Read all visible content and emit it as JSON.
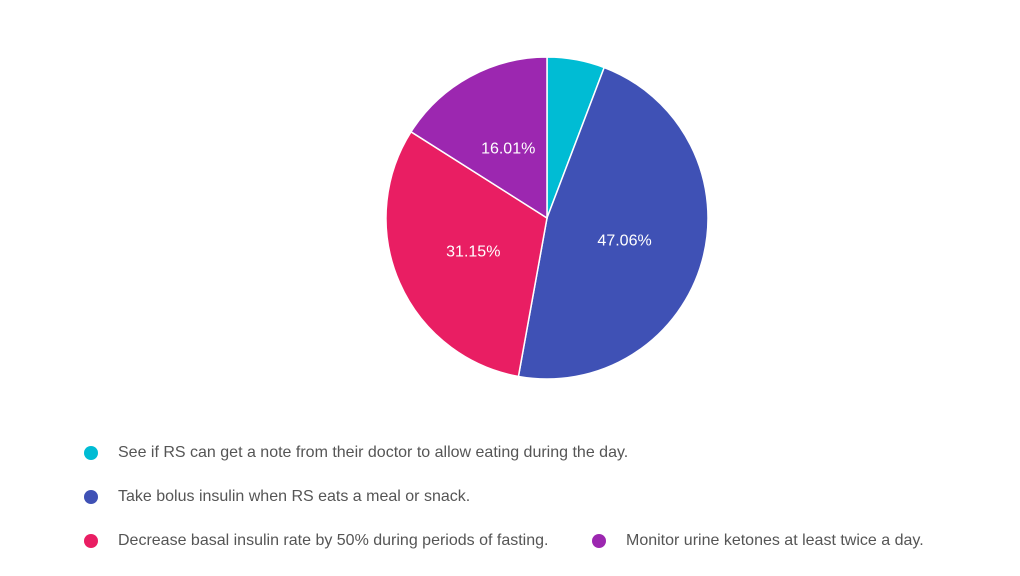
{
  "chart_data": {
    "type": "pie",
    "slices": [
      {
        "label": "See if RS can get a note from their doctor to allow eating during the day.",
        "value": 5.78,
        "color": "#00bcd4",
        "show_label": false
      },
      {
        "label": "Take bolus insulin when RS eats a meal or snack.",
        "value": 47.06,
        "color": "#3f51b5",
        "show_label": true,
        "display": "47.06%"
      },
      {
        "label": "Decrease basal insulin rate by 50% during periods of fasting.",
        "value": 31.15,
        "color": "#e91e63",
        "show_label": true,
        "display": "31.15%"
      },
      {
        "label": "Monitor urine ketones at least twice a day.",
        "value": 16.01,
        "color": "#9c27b0",
        "show_label": true,
        "display": "16.01%"
      }
    ]
  }
}
